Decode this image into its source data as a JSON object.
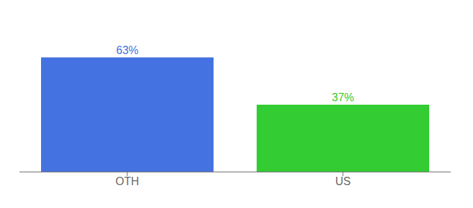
{
  "chart_data": {
    "type": "bar",
    "categories": [
      "OTH",
      "US"
    ],
    "values": [
      63,
      37
    ],
    "value_labels": [
      "63%",
      "37%"
    ],
    "colors": [
      "#4472e0",
      "#33cc33"
    ],
    "ylim": [
      0,
      80
    ],
    "data_labels": true,
    "tick_labels": "x",
    "grid": false
  }
}
